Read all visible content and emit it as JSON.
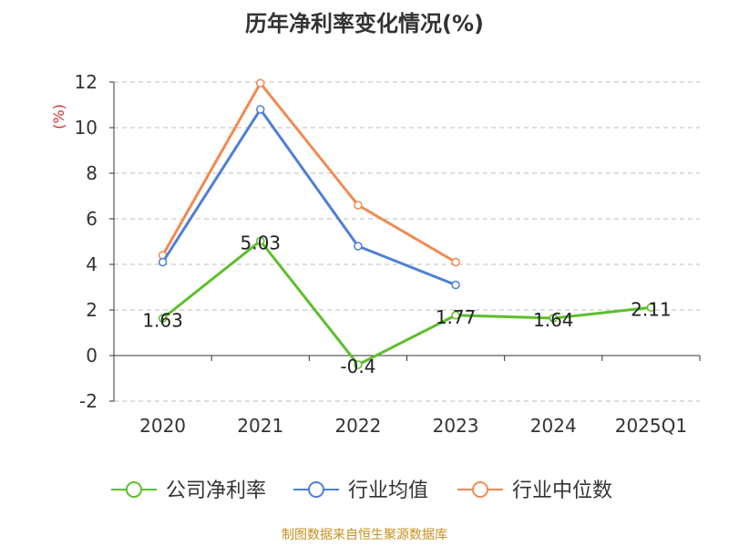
{
  "title": "历年净利率变化情况(%)",
  "footer": "制图数据来自恒生聚源数据库",
  "colors": {
    "company": "#5cbf2a",
    "avg": "#4f7fd8",
    "median": "#f28a52",
    "axis": "#333333",
    "grid": "#bdbdbd",
    "ylabel": "#d32f2f"
  },
  "chart_data": {
    "type": "line",
    "categories": [
      "2020",
      "2021",
      "2022",
      "2023",
      "2024",
      "2025Q1"
    ],
    "ylabel": "(%)",
    "ylim": [
      -2,
      12
    ],
    "yticks": [
      -2,
      0,
      2,
      4,
      6,
      8,
      10,
      12
    ],
    "grid": true,
    "legend_position": "bottom",
    "series": [
      {
        "name": "公司净利率",
        "color": "#5cbf2a",
        "values": [
          1.63,
          5.03,
          -0.4,
          1.77,
          1.64,
          2.11
        ],
        "labels": [
          "1.63",
          "5.03",
          "-0.4",
          "1.77",
          "1.64",
          "2.11"
        ]
      },
      {
        "name": "行业均值",
        "color": "#4f7fd8",
        "values": [
          4.1,
          10.8,
          4.8,
          3.1,
          null,
          null
        ]
      },
      {
        "name": "行业中位数",
        "color": "#f28a52",
        "values": [
          4.4,
          11.95,
          6.6,
          4.1,
          null,
          null
        ]
      }
    ]
  }
}
